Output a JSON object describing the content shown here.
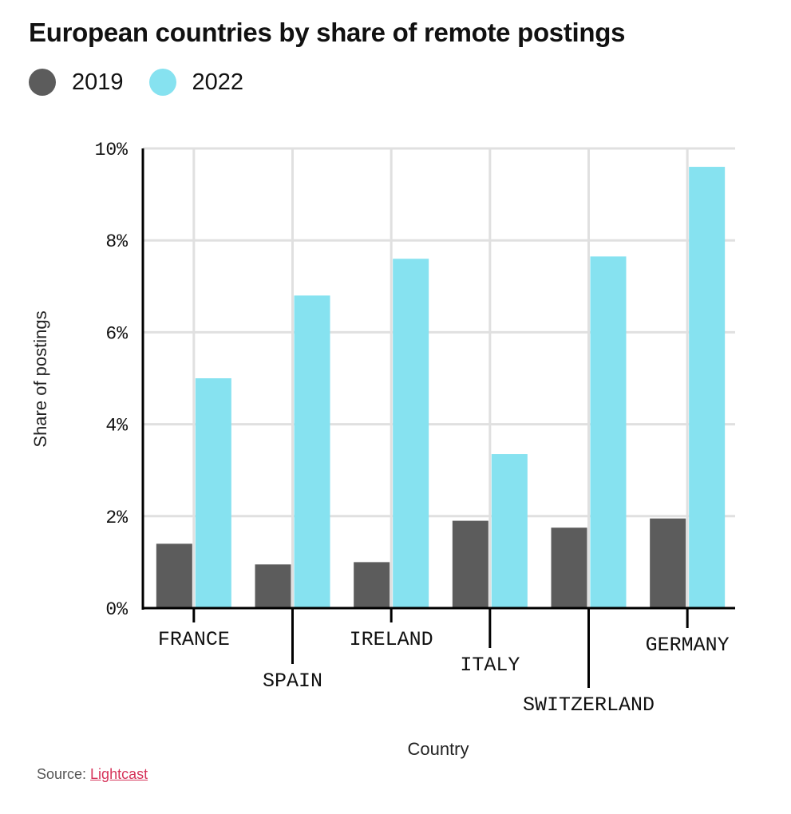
{
  "title": "European countries by share of remote postings",
  "legend": [
    {
      "label": "2019",
      "color": "#5c5c5c"
    },
    {
      "label": "2022",
      "color": "#86e2f0"
    }
  ],
  "chart_data": {
    "type": "bar",
    "categories": [
      "FRANCE",
      "SPAIN",
      "IRELAND",
      "ITALY",
      "SWITZERLAND",
      "GERMANY"
    ],
    "series": [
      {
        "name": "2019",
        "color": "#5c5c5c",
        "values": [
          1.4,
          0.95,
          1.0,
          1.9,
          1.75,
          1.95
        ]
      },
      {
        "name": "2022",
        "color": "#86e2f0",
        "values": [
          5.0,
          6.8,
          7.6,
          3.35,
          7.65,
          9.6
        ]
      }
    ],
    "xlabel": "Country",
    "ylabel": "Share of postings",
    "ylim": [
      0,
      10
    ],
    "yticks": [
      "0%",
      "2%",
      "4%",
      "6%",
      "8%",
      "10%"
    ],
    "grid": true
  },
  "source": {
    "prefix": "Source: ",
    "link_text": "Lightcast"
  }
}
